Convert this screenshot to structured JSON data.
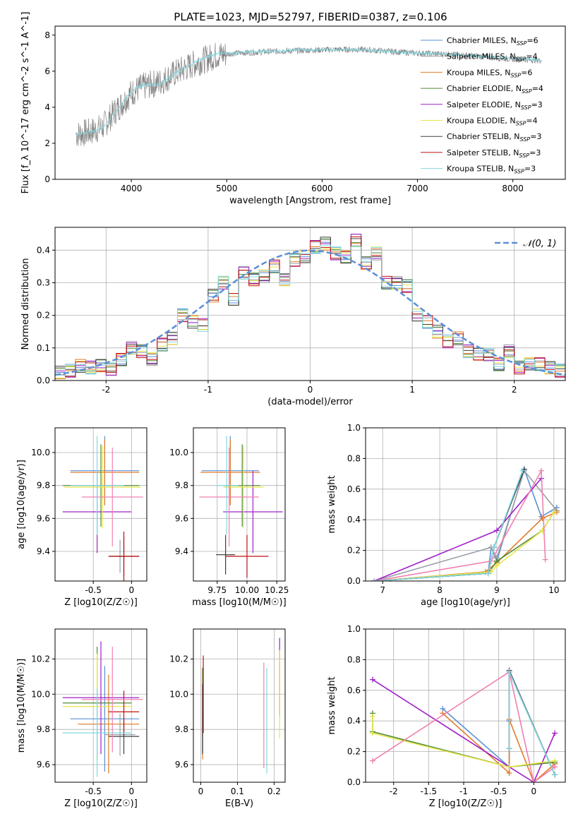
{
  "figure_title": "PLATE=1023, MJD=52797, FIBERID=0387, z=0.106",
  "models": [
    {
      "name": "Chabrier MILES",
      "nssp": "6",
      "color": "#5b8fd8"
    },
    {
      "name": "Salpeter MILES",
      "nssp": "4",
      "color": "#9aa0a8"
    },
    {
      "name": "Kroupa MILES",
      "nssp": "6",
      "color": "#e07b2a"
    },
    {
      "name": "Chabrier ELODIE",
      "nssp": "4",
      "color": "#4f8a3a"
    },
    {
      "name": "Salpeter ELODIE",
      "nssp": "3",
      "color": "#a020c8"
    },
    {
      "name": "Kroupa ELODIE",
      "nssp": "4",
      "color": "#e6e64a"
    },
    {
      "name": "Chabrier STELIB",
      "nssp": "3",
      "color": "#404040"
    },
    {
      "name": "Salpeter STELIB",
      "nssp": "3",
      "color": "#c01010"
    },
    {
      "name": "Kroupa STELIB",
      "nssp": "3",
      "color": "#80d8e0"
    }
  ],
  "chart_data": [
    {
      "id": "spectrum",
      "type": "line",
      "title": "PLATE=1023, MJD=52797, FIBERID=0387, z=0.106",
      "xlabel": "wavelength [Angstrom, rest frame]",
      "ylabel": "Flux [f_λ 10^-17 erg cm^-2 s^-1 A^-1]",
      "xlim": [
        3200,
        8550
      ],
      "ylim": [
        0,
        8.5
      ],
      "xticks": [
        4000,
        5000,
        6000,
        7000,
        8000
      ],
      "yticks": [
        0,
        2,
        4,
        6,
        8
      ],
      "legend": "top-right",
      "series": [
        {
          "name": "data",
          "color": "#808080",
          "x": [
            3420,
            3550,
            3700,
            3800,
            3900,
            4000,
            4100,
            4300,
            4500,
            4700,
            4900,
            5100,
            5300,
            5500,
            5800,
            6100,
            6400,
            6700,
            7000,
            7300,
            7600,
            7900,
            8300
          ],
          "y": [
            2.5,
            2.6,
            2.9,
            3.6,
            4.2,
            4.8,
            5.1,
            5.4,
            6.0,
            6.5,
            6.9,
            7.0,
            7.05,
            7.1,
            7.15,
            7.2,
            7.2,
            7.1,
            7.0,
            6.95,
            6.85,
            6.7,
            6.6
          ]
        },
        {
          "name": "Kroupa STELIB, N_SSP=3",
          "color": "#80d8e0",
          "x": [
            3420,
            3550,
            3700,
            3800,
            3900,
            4000,
            4100,
            4300,
            4500,
            4700,
            4900,
            5100,
            5300,
            5500,
            5800,
            6100,
            6400,
            6700,
            7000,
            7300,
            7600,
            7900,
            8300
          ],
          "y": [
            2.5,
            2.6,
            2.85,
            3.5,
            4.2,
            4.9,
            5.2,
            5.3,
            6.0,
            6.6,
            7.0,
            7.0,
            7.1,
            7.1,
            7.2,
            7.2,
            7.2,
            7.1,
            7.0,
            6.95,
            6.85,
            6.75,
            6.6
          ]
        }
      ]
    },
    {
      "id": "residuals",
      "type": "line",
      "xlabel": "(data-model)/error",
      "ylabel": "Normed distribution",
      "xlim": [
        -2.5,
        2.5
      ],
      "ylim": [
        0,
        0.47
      ],
      "xticks": [
        -2,
        -1,
        0,
        1,
        2
      ],
      "yticks": [
        0.0,
        0.1,
        0.2,
        0.3,
        0.4
      ],
      "grid": true,
      "legend": "top-right",
      "reference": {
        "name": "N(0,1)",
        "color": "#5b8fd8",
        "mu": 0,
        "sigma": 1
      },
      "bin_edges": [
        -2.5,
        -2.4,
        -2.3,
        -2.2,
        -2.1,
        -2.0,
        -1.9,
        -1.8,
        -1.7,
        -1.6,
        -1.5,
        -1.4,
        -1.3,
        -1.2,
        -1.1,
        -1.0,
        -0.9,
        -0.8,
        -0.7,
        -0.6,
        -0.5,
        -0.4,
        -0.3,
        -0.2,
        -0.1,
        0.0,
        0.1,
        0.2,
        0.3,
        0.4,
        0.5,
        0.6,
        0.7,
        0.8,
        0.9,
        1.0,
        1.1,
        1.2,
        1.3,
        1.4,
        1.5,
        1.6,
        1.7,
        1.8,
        1.9,
        2.0,
        2.1,
        2.2,
        2.3,
        2.4,
        2.5
      ],
      "hist_values": [
        0.025,
        0.03,
        0.045,
        0.04,
        0.045,
        0.035,
        0.065,
        0.1,
        0.09,
        0.065,
        0.11,
        0.13,
        0.2,
        0.18,
        0.17,
        0.26,
        0.3,
        0.25,
        0.33,
        0.31,
        0.32,
        0.35,
        0.31,
        0.37,
        0.38,
        0.41,
        0.42,
        0.39,
        0.38,
        0.43,
        0.36,
        0.39,
        0.3,
        0.3,
        0.29,
        0.2,
        0.18,
        0.15,
        0.12,
        0.13,
        0.09,
        0.08,
        0.08,
        0.05,
        0.09,
        0.04,
        0.05,
        0.05,
        0.04,
        0.03
      ]
    },
    {
      "id": "age_vs_Z",
      "type": "scatter",
      "xlabel": "Z [log10(Z/Z☉)]",
      "ylabel": "age  [log10(age/yr)]",
      "xlim": [
        -1.0,
        0.2
      ],
      "ylim": [
        9.22,
        10.15
      ],
      "xticks": [
        -0.5,
        0.0
      ],
      "yticks": [
        9.4,
        9.6,
        9.8,
        10.0
      ],
      "grid": true,
      "points": [
        {
          "x": -0.35,
          "y": 9.89,
          "xerr": 0.45,
          "yerr": 0.21,
          "color": "#5b8fd8"
        },
        {
          "x": -0.15,
          "y": 9.37,
          "xerr": 0.05,
          "yerr": 0.1,
          "color": "#9aa0a8"
        },
        {
          "x": -0.35,
          "y": 9.88,
          "xerr": 0.45,
          "yerr": 0.2,
          "color": "#e07b2a"
        },
        {
          "x": -0.4,
          "y": 9.8,
          "xerr": 0.5,
          "yerr": 0.25,
          "color": "#4f8a3a"
        },
        {
          "x": -0.45,
          "y": 9.64,
          "xerr": 0.45,
          "yerr": 0.25,
          "color": "#a020c8"
        },
        {
          "x": -0.38,
          "y": 9.79,
          "xerr": 0.5,
          "yerr": 0.25,
          "color": "#e6e64a"
        },
        {
          "x": -0.1,
          "y": 9.37,
          "xerr": 0.2,
          "yerr": 0.12,
          "color": "#404040"
        },
        {
          "x": -0.1,
          "y": 9.37,
          "xerr": 0.2,
          "yerr": 0.15,
          "color": "#c01010"
        },
        {
          "x": -0.25,
          "y": 9.73,
          "xerr": 0.4,
          "yerr": 0.3,
          "color": "#f080b0"
        },
        {
          "x": -0.45,
          "y": 9.8,
          "xerr": 0.35,
          "yerr": 0.3,
          "color": "#80d8e0"
        }
      ]
    },
    {
      "id": "age_vs_mass",
      "type": "scatter",
      "xlabel": "mass [log10(M/M☉)]",
      "ylabel": "",
      "xlim": [
        9.55,
        10.32
      ],
      "ylim": [
        9.22,
        10.15
      ],
      "xticks": [
        9.75,
        10.0,
        10.25
      ],
      "xtick_labels": [
        "9.75",
        "10.00",
        "10.25"
      ],
      "yticks": [
        9.4,
        9.6,
        9.8,
        10.0
      ],
      "grid": true,
      "points": [
        {
          "x": 9.86,
          "y": 9.89,
          "xerr": 0.24,
          "yerr": 0.21,
          "color": "#5b8fd8"
        },
        {
          "x": 9.82,
          "y": 9.38,
          "xerr": 0.07,
          "yerr": 0.1,
          "color": "#9aa0a8"
        },
        {
          "x": 9.86,
          "y": 9.88,
          "xerr": 0.25,
          "yerr": 0.2,
          "color": "#e07b2a"
        },
        {
          "x": 9.96,
          "y": 9.8,
          "xerr": 0.15,
          "yerr": 0.25,
          "color": "#4f8a3a"
        },
        {
          "x": 10.05,
          "y": 9.64,
          "xerr": 0.25,
          "yerr": 0.25,
          "color": "#a020c8"
        },
        {
          "x": 9.97,
          "y": 9.79,
          "xerr": 0.17,
          "yerr": 0.25,
          "color": "#e6e64a"
        },
        {
          "x": 9.82,
          "y": 9.38,
          "xerr": 0.08,
          "yerr": 0.12,
          "color": "#404040"
        },
        {
          "x": 10.0,
          "y": 9.37,
          "xerr": 0.18,
          "yerr": 0.13,
          "color": "#c01010"
        },
        {
          "x": 9.85,
          "y": 9.73,
          "xerr": 0.25,
          "yerr": 0.3,
          "color": "#f080b0"
        },
        {
          "x": 9.83,
          "y": 9.8,
          "xerr": 0.1,
          "yerr": 0.3,
          "color": "#80d8e0"
        }
      ]
    },
    {
      "id": "weight_vs_age",
      "type": "line",
      "xlabel": "age  [log10(age/yr)]",
      "ylabel": "mass weight",
      "xlim": [
        6.7,
        10.2
      ],
      "ylim": [
        0,
        1.0
      ],
      "xticks": [
        7,
        8,
        9,
        10
      ],
      "yticks": [
        0.0,
        0.2,
        0.4,
        0.6,
        0.8,
        1.0
      ],
      "grid": true,
      "series": [
        {
          "name": "Chabrier MILES",
          "color": "#5b8fd8",
          "x": [
            6.85,
            8.85,
            8.9,
            9.0,
            9.48,
            9.78,
            10.05
          ],
          "y": [
            0.0,
            0.05,
            0.22,
            0.13,
            0.73,
            0.42,
            0.48
          ]
        },
        {
          "name": "Salpeter MILES",
          "color": "#9aa0a8",
          "x": [
            6.85,
            8.9,
            9.0,
            9.48,
            10.05
          ],
          "y": [
            0.0,
            0.22,
            0.15,
            0.72,
            0.46
          ]
        },
        {
          "name": "Kroupa MILES",
          "color": "#e07b2a",
          "x": [
            6.85,
            8.8,
            9.0,
            9.8,
            10.05
          ],
          "y": [
            0.0,
            0.06,
            0.12,
            0.41,
            0.45
          ]
        },
        {
          "name": "Chabrier ELODIE",
          "color": "#4f8a3a",
          "x": [
            6.85,
            8.85,
            9.0,
            9.8,
            10.0
          ],
          "y": [
            0.0,
            0.05,
            0.13,
            0.33,
            0.45
          ]
        },
        {
          "name": "Salpeter ELODIE",
          "color": "#a020c8",
          "x": [
            6.85,
            9.0,
            9.78
          ],
          "y": [
            0.0,
            0.33,
            0.67
          ]
        },
        {
          "name": "Kroupa ELODIE",
          "color": "#e6e64a",
          "x": [
            6.85,
            8.9,
            9.0,
            9.8,
            10.0
          ],
          "y": [
            0.0,
            0.06,
            0.1,
            0.33,
            0.45
          ]
        },
        {
          "name": "Chabrier STELIB",
          "color": "#404040",
          "x": [
            6.85,
            8.85,
            8.95,
            9.48
          ],
          "y": [
            0.0,
            0.05,
            0.22,
            0.73
          ]
        },
        {
          "name": "Kroupa ELODIE pink",
          "color": "#f080b0",
          "x": [
            6.85,
            8.9,
            9.78,
            9.85
          ],
          "y": [
            0.0,
            0.13,
            0.72,
            0.14
          ]
        },
        {
          "name": "Kroupa STELIB",
          "color": "#80d8e0",
          "x": [
            6.85,
            8.85,
            8.95,
            9.45
          ],
          "y": [
            0.0,
            0.05,
            0.22,
            0.72
          ]
        }
      ]
    },
    {
      "id": "mass_vs_Z",
      "type": "scatter",
      "xlabel": "Z [log10(Z/Z☉)]",
      "ylabel": "mass [log10(M/M☉)]",
      "xlim": [
        -1.0,
        0.2
      ],
      "ylim": [
        9.5,
        10.37
      ],
      "xticks": [
        -0.5,
        0.0
      ],
      "yticks": [
        9.6,
        9.8,
        10.0,
        10.2
      ],
      "grid": true,
      "points": [
        {
          "x": -0.35,
          "y": 9.86,
          "xerr": 0.45,
          "yerr": 0.3,
          "color": "#5b8fd8"
        },
        {
          "x": -0.15,
          "y": 9.77,
          "xerr": 0.2,
          "yerr": 0.12,
          "color": "#9aa0a8"
        },
        {
          "x": -0.3,
          "y": 9.83,
          "xerr": 0.4,
          "yerr": 0.28,
          "color": "#e07b2a"
        },
        {
          "x": -0.45,
          "y": 9.95,
          "xerr": 0.45,
          "yerr": 0.32,
          "color": "#4f8a3a"
        },
        {
          "x": -0.4,
          "y": 9.98,
          "xerr": 0.5,
          "yerr": 0.32,
          "color": "#a020c8"
        },
        {
          "x": -0.45,
          "y": 9.93,
          "xerr": 0.45,
          "yerr": 0.3,
          "color": "#e6e64a"
        },
        {
          "x": -0.1,
          "y": 9.76,
          "xerr": 0.2,
          "yerr": 0.1,
          "color": "#404040"
        },
        {
          "x": -0.1,
          "y": 9.9,
          "xerr": 0.2,
          "yerr": 0.12,
          "color": "#c01010"
        },
        {
          "x": -0.25,
          "y": 9.97,
          "xerr": 0.4,
          "yerr": 0.3,
          "color": "#f080b0"
        },
        {
          "x": -0.45,
          "y": 9.78,
          "xerr": 0.45,
          "yerr": 0.25,
          "color": "#80d8e0"
        }
      ]
    },
    {
      "id": "mass_vs_ebv",
      "type": "scatter",
      "xlabel": "E(B-V)",
      "ylabel": "",
      "xlim": [
        -0.02,
        0.23
      ],
      "ylim": [
        9.5,
        10.37
      ],
      "xticks": [
        0.0,
        0.1,
        0.2
      ],
      "yticks": [
        9.6,
        9.8,
        10.0,
        10.2
      ],
      "grid": true,
      "points": [
        {
          "x": 0.005,
          "y": 9.86,
          "xerr": 0,
          "yerr": 0.2,
          "color": "#5b8fd8"
        },
        {
          "x": 0.005,
          "y": 9.8,
          "xerr": 0,
          "yerr": 0.12,
          "color": "#9aa0a8"
        },
        {
          "x": 0.005,
          "y": 9.83,
          "xerr": 0,
          "yerr": 0.2,
          "color": "#e07b2a"
        },
        {
          "x": 0.005,
          "y": 9.95,
          "xerr": 0,
          "yerr": 0.2,
          "color": "#4f8a3a"
        },
        {
          "x": 0.215,
          "y": 10.1,
          "xerr": 0,
          "yerr": 0.22,
          "color": "#a020c8"
        },
        {
          "x": 0.215,
          "y": 10.0,
          "xerr": 0,
          "yerr": 0.25,
          "color": "#e6e64a"
        },
        {
          "x": 0.005,
          "y": 9.86,
          "xerr": 0,
          "yerr": 0.2,
          "color": "#404040"
        },
        {
          "x": 0.007,
          "y": 10.0,
          "xerr": 0,
          "yerr": 0.22,
          "color": "#c01010"
        },
        {
          "x": 0.172,
          "y": 9.88,
          "xerr": 0,
          "yerr": 0.3,
          "color": "#f080b0"
        },
        {
          "x": 0.18,
          "y": 9.85,
          "xerr": 0,
          "yerr": 0.3,
          "color": "#80d8e0"
        }
      ]
    },
    {
      "id": "weight_vs_Z",
      "type": "line",
      "xlabel": "Z [log10(Z/Z☉)]",
      "ylabel": "mass weight",
      "xlim": [
        -2.4,
        0.45
      ],
      "ylim": [
        0,
        1.0
      ],
      "xticks": [
        -2.0,
        -1.5,
        -1.0,
        -0.5,
        0.0
      ],
      "yticks": [
        0.0,
        0.2,
        0.4,
        0.6,
        0.8,
        1.0
      ],
      "grid": true,
      "series": [
        {
          "name": "Chabrier MILES",
          "color": "#5b8fd8",
          "x": [
            -1.3,
            -0.35,
            -0.35,
            -0.35,
            0.3
          ],
          "y": [
            0.48,
            0.1,
            0.4,
            0.72,
            0.05
          ]
        },
        {
          "name": "Salpeter MILES",
          "color": "#9aa0a8",
          "x": [
            -0.35,
            -0.35,
            0.3
          ],
          "y": [
            0.22,
            0.72,
            0.05
          ]
        },
        {
          "name": "Kroupa MILES",
          "color": "#e07b2a",
          "x": [
            -1.3,
            -0.35,
            -0.35,
            0.0,
            0.3
          ],
          "y": [
            0.45,
            0.06,
            0.41,
            0.0,
            0.12
          ]
        },
        {
          "name": "Chabrier ELODIE",
          "color": "#4f8a3a",
          "x": [
            -2.3,
            -2.3,
            -0.35,
            0.3
          ],
          "y": [
            0.45,
            0.33,
            0.1,
            0.13
          ]
        },
        {
          "name": "Salpeter ELODIE",
          "color": "#a020c8",
          "x": [
            -2.3,
            -0.35,
            0.0,
            0.3
          ],
          "y": [
            0.67,
            0.1,
            0.0,
            0.32
          ]
        },
        {
          "name": "Kroupa ELODIE",
          "color": "#e6e64a",
          "x": [
            -2.3,
            -2.3,
            -0.35,
            0.3
          ],
          "y": [
            0.43,
            0.32,
            0.1,
            0.14
          ]
        },
        {
          "name": "Chabrier STELIB",
          "color": "#404040",
          "x": [
            -0.35,
            -0.35,
            0.3
          ],
          "y": [
            0.22,
            0.73,
            0.05
          ]
        },
        {
          "name": "Kroupa ELODIE pink",
          "color": "#f080b0",
          "x": [
            -2.3,
            -0.35,
            0.0,
            0.3
          ],
          "y": [
            0.14,
            0.72,
            0.0,
            0.1
          ]
        },
        {
          "name": "Kroupa STELIB",
          "color": "#80d8e0",
          "x": [
            -0.35,
            -0.35,
            0.3
          ],
          "y": [
            0.22,
            0.72,
            0.05
          ]
        }
      ]
    }
  ]
}
